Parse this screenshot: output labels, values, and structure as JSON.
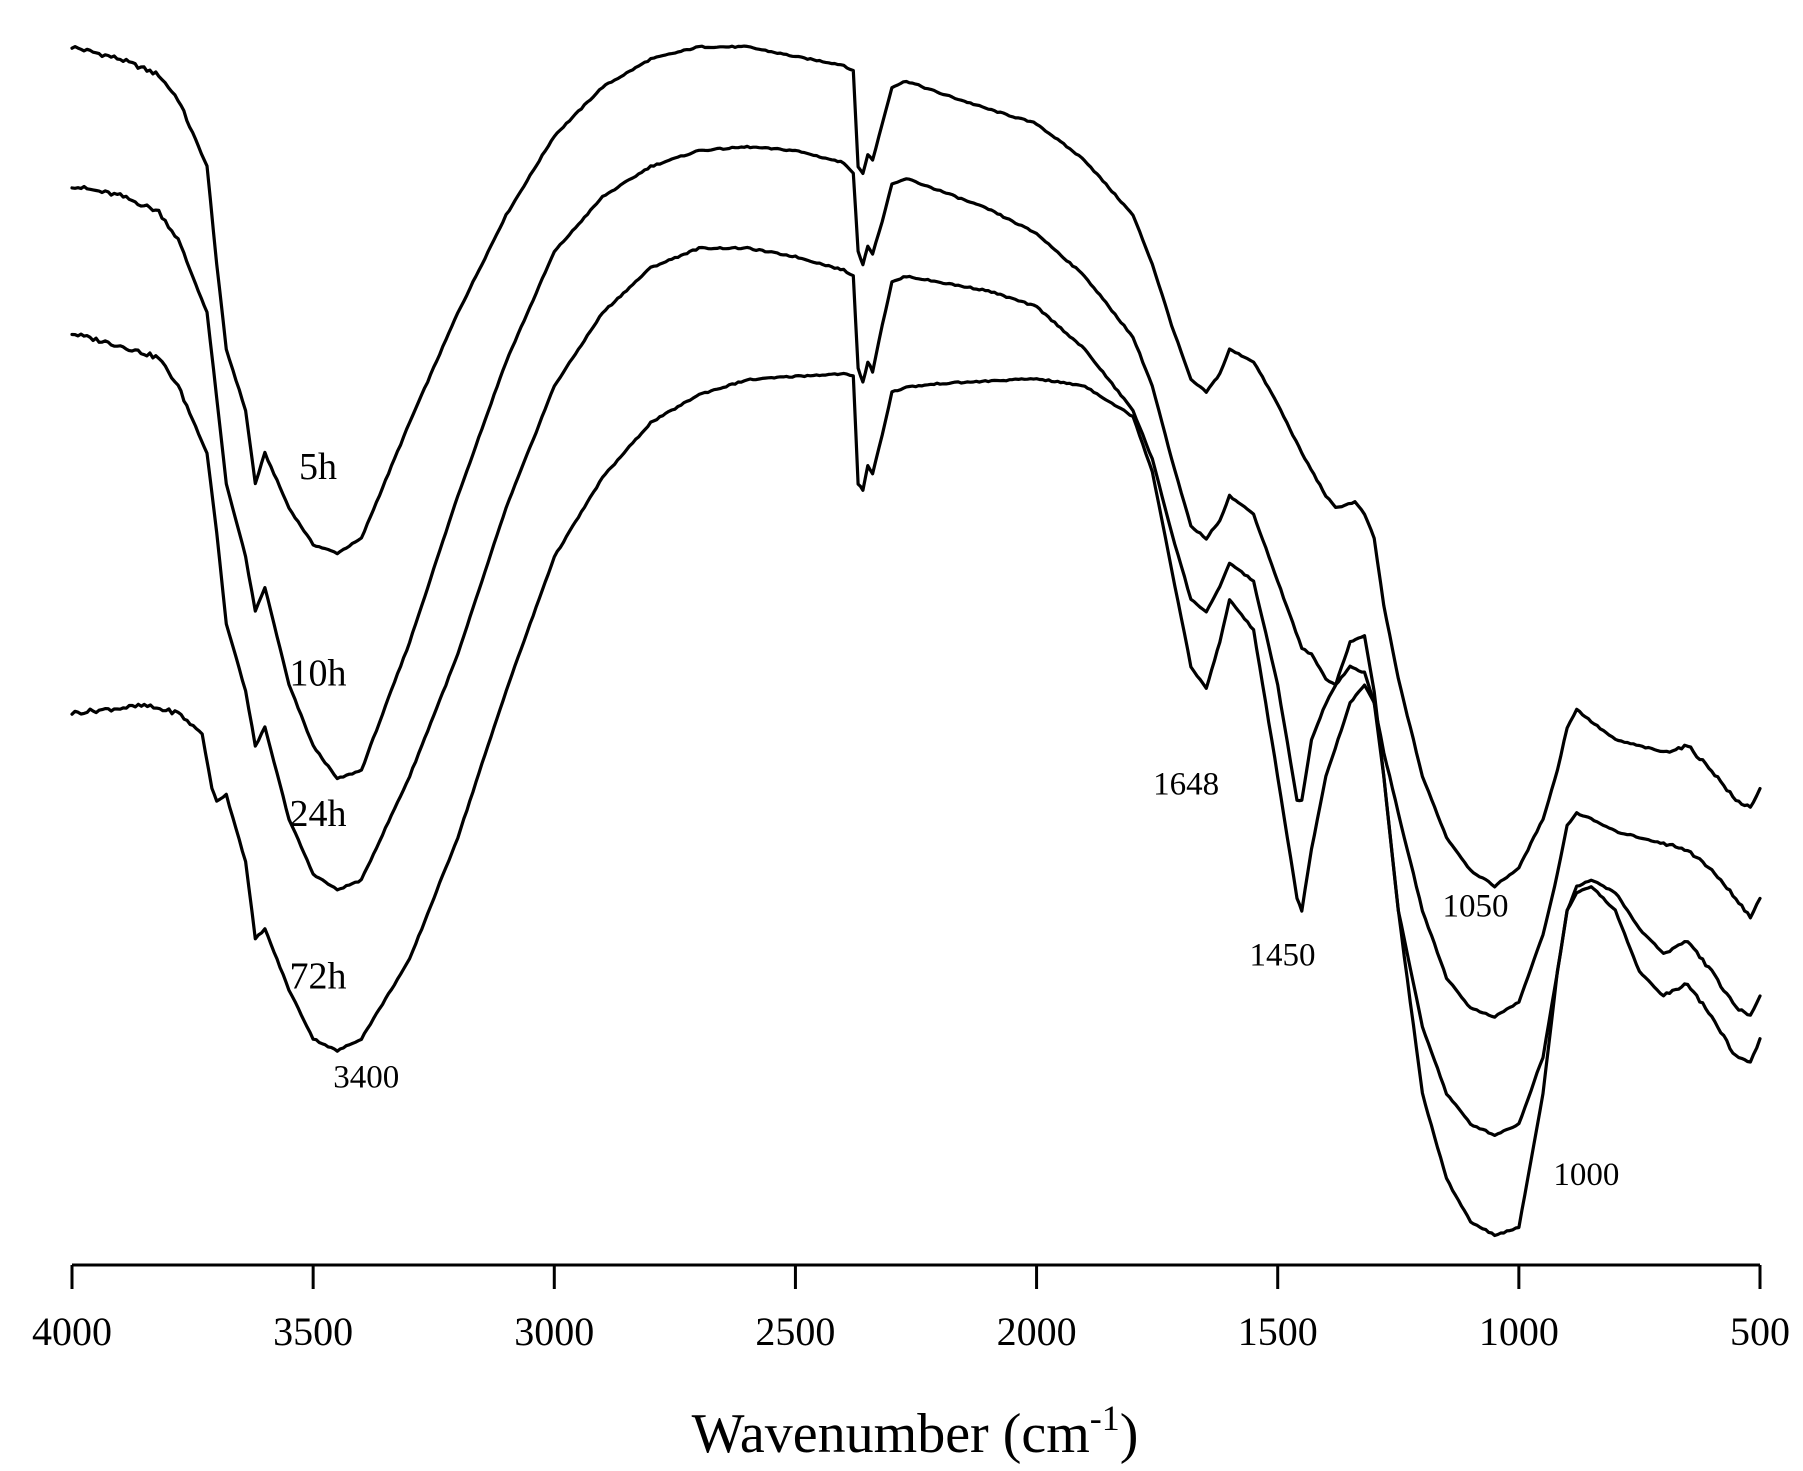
{
  "chart_data": {
    "type": "line",
    "title": "",
    "xlabel": "Wavenumber (cm",
    "xlabel_sup": "-1",
    "xlabel_close": ")",
    "ylabel": "",
    "xlim": [
      4000,
      500
    ],
    "ylim": [
      0,
      100
    ],
    "x_reversed": true,
    "grid": false,
    "xticks": [
      4000,
      3500,
      3000,
      2500,
      2000,
      1500,
      1000,
      500
    ],
    "xtick_labels": [
      "4000",
      "3500",
      "3000",
      "2500",
      "2000",
      "1500",
      "1000",
      "500"
    ],
    "series": [
      {
        "name": "5h",
        "label_x": 3490,
        "points": [
          [
            4000,
            97.8
          ],
          [
            3900,
            96.8
          ],
          [
            3820,
            95.5
          ],
          [
            3780,
            93.5
          ],
          [
            3720,
            88
          ],
          [
            3700,
            80
          ],
          [
            3680,
            73
          ],
          [
            3640,
            68
          ],
          [
            3620,
            62
          ],
          [
            3600,
            64.5
          ],
          [
            3550,
            60
          ],
          [
            3500,
            57
          ],
          [
            3450,
            56.3
          ],
          [
            3400,
            57.5
          ],
          [
            3300,
            67
          ],
          [
            3200,
            76
          ],
          [
            3100,
            84
          ],
          [
            3000,
            90.5
          ],
          [
            2900,
            94.5
          ],
          [
            2800,
            96.8
          ],
          [
            2700,
            97.8
          ],
          [
            2600,
            97.8
          ],
          [
            2500,
            97
          ],
          [
            2400,
            96.3
          ],
          [
            2380,
            95.8
          ],
          [
            2370,
            88
          ],
          [
            2360,
            87.4
          ],
          [
            2350,
            89
          ],
          [
            2340,
            88.5
          ],
          [
            2320,
            91.5
          ],
          [
            2300,
            94.5
          ],
          [
            2270,
            95
          ],
          [
            2200,
            94
          ],
          [
            2100,
            92.7
          ],
          [
            2000,
            91.5
          ],
          [
            1900,
            88.5
          ],
          [
            1800,
            84
          ],
          [
            1760,
            80
          ],
          [
            1720,
            75
          ],
          [
            1680,
            70.5
          ],
          [
            1648,
            69.5
          ],
          [
            1620,
            71
          ],
          [
            1600,
            73
          ],
          [
            1550,
            72
          ],
          [
            1500,
            68.5
          ],
          [
            1450,
            64.5
          ],
          [
            1400,
            61
          ],
          [
            1380,
            60
          ],
          [
            1340,
            60.5
          ],
          [
            1320,
            59.5
          ],
          [
            1300,
            57.5
          ],
          [
            1280,
            52
          ],
          [
            1250,
            46
          ],
          [
            1200,
            38
          ],
          [
            1150,
            33
          ],
          [
            1100,
            30.3
          ],
          [
            1050,
            29
          ],
          [
            1000,
            30.5
          ],
          [
            950,
            34.5
          ],
          [
            920,
            38.5
          ],
          [
            900,
            42
          ],
          [
            880,
            43.5
          ],
          [
            850,
            42.5
          ],
          [
            800,
            41
          ],
          [
            700,
            40
          ],
          [
            650,
            40.5
          ],
          [
            600,
            38.5
          ],
          [
            550,
            36
          ],
          [
            520,
            35.5
          ],
          [
            500,
            37
          ]
        ]
      },
      {
        "name": "10h",
        "label_x": 3490,
        "points": [
          [
            4000,
            86.4
          ],
          [
            3900,
            85.6
          ],
          [
            3820,
            84.3
          ],
          [
            3780,
            82
          ],
          [
            3720,
            76
          ],
          [
            3700,
            69
          ],
          [
            3680,
            62
          ],
          [
            3640,
            56
          ],
          [
            3620,
            51.5
          ],
          [
            3600,
            53.5
          ],
          [
            3550,
            45.5
          ],
          [
            3500,
            40.5
          ],
          [
            3450,
            37.8
          ],
          [
            3400,
            38.5
          ],
          [
            3300,
            49
          ],
          [
            3200,
            61
          ],
          [
            3100,
            72
          ],
          [
            3000,
            81
          ],
          [
            2900,
            85.5
          ],
          [
            2800,
            88
          ],
          [
            2700,
            89.3
          ],
          [
            2600,
            89.6
          ],
          [
            2500,
            89.3
          ],
          [
            2400,
            88.3
          ],
          [
            2380,
            87.5
          ],
          [
            2370,
            81
          ],
          [
            2360,
            80
          ],
          [
            2350,
            81.5
          ],
          [
            2340,
            80.8
          ],
          [
            2320,
            83.5
          ],
          [
            2300,
            86.5
          ],
          [
            2270,
            87
          ],
          [
            2200,
            86
          ],
          [
            2100,
            84.5
          ],
          [
            2000,
            82.5
          ],
          [
            1900,
            79
          ],
          [
            1800,
            74
          ],
          [
            1760,
            70
          ],
          [
            1720,
            64
          ],
          [
            1680,
            58.5
          ],
          [
            1648,
            57.5
          ],
          [
            1620,
            59
          ],
          [
            1600,
            61
          ],
          [
            1550,
            59.5
          ],
          [
            1500,
            54
          ],
          [
            1450,
            48.5
          ],
          [
            1430,
            48
          ],
          [
            1400,
            46
          ],
          [
            1380,
            45.5
          ],
          [
            1350,
            47
          ],
          [
            1320,
            46.5
          ],
          [
            1300,
            44
          ],
          [
            1280,
            40
          ],
          [
            1250,
            35
          ],
          [
            1200,
            27
          ],
          [
            1150,
            21.5
          ],
          [
            1100,
            19
          ],
          [
            1050,
            18.3
          ],
          [
            1000,
            19.5
          ],
          [
            950,
            25
          ],
          [
            920,
            30
          ],
          [
            900,
            34
          ],
          [
            880,
            35
          ],
          [
            850,
            34.5
          ],
          [
            800,
            33.5
          ],
          [
            700,
            32.5
          ],
          [
            650,
            32
          ],
          [
            600,
            30.3
          ],
          [
            550,
            28
          ],
          [
            520,
            26.5
          ],
          [
            500,
            28
          ]
        ]
      },
      {
        "name": "24h",
        "label_x": 3490,
        "points": [
          [
            4000,
            74.3
          ],
          [
            3900,
            73.3
          ],
          [
            3820,
            72.3
          ],
          [
            3780,
            70
          ],
          [
            3720,
            64.5
          ],
          [
            3700,
            58
          ],
          [
            3680,
            50.5
          ],
          [
            3640,
            45
          ],
          [
            3620,
            40.5
          ],
          [
            3600,
            42
          ],
          [
            3550,
            34.5
          ],
          [
            3500,
            30
          ],
          [
            3450,
            28.7
          ],
          [
            3400,
            29.5
          ],
          [
            3300,
            38
          ],
          [
            3200,
            48
          ],
          [
            3100,
            60
          ],
          [
            3000,
            70
          ],
          [
            2900,
            76
          ],
          [
            2800,
            79.7
          ],
          [
            2700,
            81.3
          ],
          [
            2600,
            81.3
          ],
          [
            2500,
            80.6
          ],
          [
            2400,
            79.5
          ],
          [
            2380,
            79
          ],
          [
            2370,
            71.5
          ],
          [
            2360,
            70.3
          ],
          [
            2350,
            72
          ],
          [
            2340,
            71.2
          ],
          [
            2320,
            75
          ],
          [
            2300,
            78.5
          ],
          [
            2270,
            79
          ],
          [
            2200,
            78.5
          ],
          [
            2100,
            77.8
          ],
          [
            2000,
            76.5
          ],
          [
            1900,
            73
          ],
          [
            1800,
            68
          ],
          [
            1760,
            64
          ],
          [
            1720,
            58
          ],
          [
            1680,
            52.5
          ],
          [
            1648,
            51.5
          ],
          [
            1620,
            53.5
          ],
          [
            1600,
            55.5
          ],
          [
            1550,
            54
          ],
          [
            1500,
            45.5
          ],
          [
            1460,
            36
          ],
          [
            1450,
            36
          ],
          [
            1430,
            41
          ],
          [
            1400,
            44
          ],
          [
            1380,
            45.5
          ],
          [
            1350,
            49
          ],
          [
            1320,
            49.5
          ],
          [
            1300,
            45
          ],
          [
            1280,
            38
          ],
          [
            1250,
            27
          ],
          [
            1200,
            17.5
          ],
          [
            1150,
            12
          ],
          [
            1100,
            9.5
          ],
          [
            1050,
            8.6
          ],
          [
            1000,
            9.5
          ],
          [
            950,
            15
          ],
          [
            920,
            22
          ],
          [
            900,
            27
          ],
          [
            880,
            29
          ],
          [
            850,
            29.5
          ],
          [
            800,
            28.5
          ],
          [
            750,
            25.5
          ],
          [
            700,
            23.5
          ],
          [
            650,
            24.5
          ],
          [
            600,
            22
          ],
          [
            550,
            19
          ],
          [
            520,
            18.5
          ],
          [
            500,
            20
          ]
        ]
      },
      {
        "name": "72h",
        "label_x": 3490,
        "points": [
          [
            4000,
            43.2
          ],
          [
            3900,
            43.6
          ],
          [
            3850,
            43.8
          ],
          [
            3780,
            43.2
          ],
          [
            3730,
            41.5
          ],
          [
            3710,
            37
          ],
          [
            3700,
            36
          ],
          [
            3680,
            36.5
          ],
          [
            3640,
            31
          ],
          [
            3620,
            24.7
          ],
          [
            3600,
            25.5
          ],
          [
            3550,
            20.5
          ],
          [
            3500,
            16.5
          ],
          [
            3450,
            15.5
          ],
          [
            3400,
            16.5
          ],
          [
            3300,
            23
          ],
          [
            3200,
            33
          ],
          [
            3100,
            45
          ],
          [
            3000,
            56
          ],
          [
            2900,
            62.5
          ],
          [
            2800,
            67
          ],
          [
            2700,
            69.3
          ],
          [
            2600,
            70.5
          ],
          [
            2500,
            70.8
          ],
          [
            2400,
            71
          ],
          [
            2380,
            70.8
          ],
          [
            2370,
            62
          ],
          [
            2360,
            61.5
          ],
          [
            2350,
            63.5
          ],
          [
            2340,
            62.8
          ],
          [
            2320,
            66
          ],
          [
            2300,
            69.5
          ],
          [
            2270,
            69.9
          ],
          [
            2200,
            70.2
          ],
          [
            2100,
            70.4
          ],
          [
            2000,
            70.6
          ],
          [
            1900,
            70
          ],
          [
            1800,
            67.5
          ],
          [
            1760,
            63
          ],
          [
            1720,
            55
          ],
          [
            1680,
            47
          ],
          [
            1648,
            45.2
          ],
          [
            1620,
            49
          ],
          [
            1600,
            52.5
          ],
          [
            1550,
            50
          ],
          [
            1500,
            38
          ],
          [
            1460,
            28
          ],
          [
            1450,
            27
          ],
          [
            1430,
            32
          ],
          [
            1400,
            38
          ],
          [
            1350,
            44
          ],
          [
            1320,
            45.5
          ],
          [
            1300,
            44
          ],
          [
            1280,
            38
          ],
          [
            1250,
            27
          ],
          [
            1200,
            12
          ],
          [
            1150,
            5
          ],
          [
            1100,
            1.5
          ],
          [
            1050,
            0.4
          ],
          [
            1000,
            1
          ],
          [
            950,
            12
          ],
          [
            920,
            22
          ],
          [
            900,
            27
          ],
          [
            880,
            28.5
          ],
          [
            850,
            29
          ],
          [
            800,
            27
          ],
          [
            750,
            22
          ],
          [
            700,
            20
          ],
          [
            650,
            21
          ],
          [
            600,
            18.3
          ],
          [
            550,
            15
          ],
          [
            520,
            14.5
          ],
          [
            500,
            16.5
          ]
        ]
      }
    ],
    "series_label_positions": [
      {
        "name": "5h",
        "x": 3490
      },
      {
        "name": "10h",
        "x": 3490
      },
      {
        "name": "24h",
        "x": 3490
      },
      {
        "name": "72h",
        "x": 3490
      }
    ],
    "annotations": [
      {
        "text": "3400",
        "x": 3390,
        "y": 12.5
      },
      {
        "text": "1648",
        "x": 1690,
        "y": 36.5
      },
      {
        "text": "1450",
        "x": 1490,
        "y": 22.5
      },
      {
        "text": "1050",
        "x": 1090,
        "y": 26.5
      },
      {
        "text": "1000",
        "x": 860,
        "y": 4.5
      }
    ]
  }
}
